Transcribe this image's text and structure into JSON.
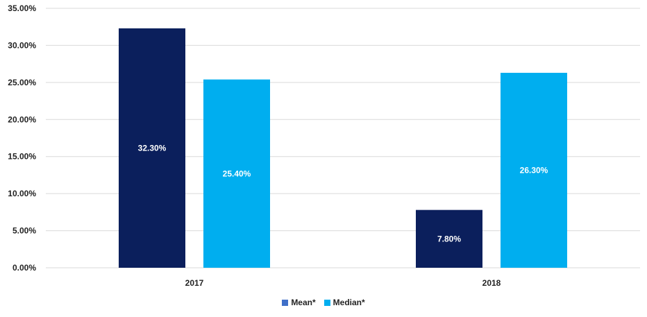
{
  "chart_data": {
    "type": "bar",
    "categories": [
      "2017",
      "2018"
    ],
    "series": [
      {
        "name": "Mean*",
        "values": [
          32.3,
          7.8
        ],
        "labels": [
          "32.30%",
          "7.80%"
        ],
        "color": "#0b1f5c",
        "legend_color": "#3f6fc8"
      },
      {
        "name": "Median*",
        "values": [
          25.4,
          26.3
        ],
        "labels": [
          "25.40%",
          "26.30%"
        ],
        "color": "#00aeef",
        "legend_color": "#00aeef"
      }
    ],
    "ylim": [
      0,
      35
    ],
    "yticks": [
      0,
      5,
      10,
      15,
      20,
      25,
      30,
      35
    ],
    "ytick_labels": [
      "0.00%",
      "5.00%",
      "10.00%",
      "15.00%",
      "20.00%",
      "25.00%",
      "30.00%",
      "35.00%"
    ],
    "grid": true,
    "legend_position": "bottom",
    "title": "",
    "xlabel": "",
    "ylabel": ""
  }
}
